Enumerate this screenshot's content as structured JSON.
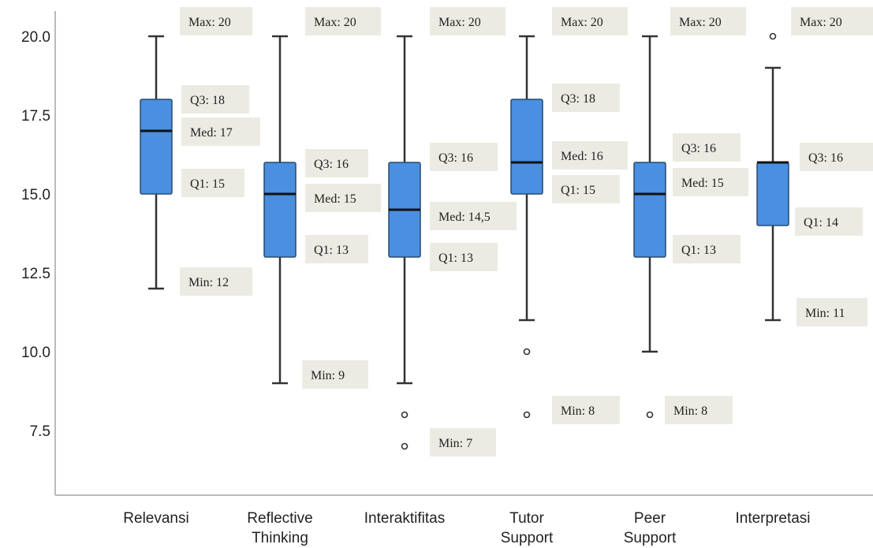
{
  "colors": {
    "box_fill": "#4a8fe0",
    "box_stroke": "#2a4a6e",
    "whisker": "#333333",
    "median": "#111111",
    "axis": "#bbbbbb",
    "label_bg": "#ecebe3"
  },
  "chart_data": {
    "type": "boxplot",
    "title": "",
    "xlabel": "",
    "ylabel": "",
    "ylim": [
      5.8,
      21.5
    ],
    "yticks": [
      "7.5",
      "10.0",
      "12.5",
      "15.0",
      "17.5",
      "20.0"
    ],
    "categories": [
      {
        "label": [
          "Relevansi"
        ],
        "min": 12,
        "q1": 15,
        "median": 17,
        "q3": 18,
        "max": 20,
        "outliers": [],
        "labels": {
          "max": "Max: 20",
          "q3": "Q3: 18",
          "median": "Med: 17",
          "q1": "Q1: 15",
          "min": "Min: 12"
        }
      },
      {
        "label": [
          "Reflective",
          "Thinking"
        ],
        "min": 9,
        "q1": 13,
        "median": 15,
        "q3": 16,
        "max": 20,
        "outliers": [],
        "labels": {
          "max": "Max: 20",
          "q3": "Q3: 16",
          "median": "Med: 15",
          "q1": "Q1: 13",
          "min": "Min: 9"
        }
      },
      {
        "label": [
          "Interaktifitas"
        ],
        "min": 9,
        "q1": 13,
        "median": 14.5,
        "q3": 16,
        "max": 20,
        "outliers": [
          8,
          7
        ],
        "labels": {
          "max": "Max: 20",
          "q3": "Q3: 16",
          "median": "Med: 14,5",
          "q1": "Q1: 13",
          "min": "Min: 7"
        }
      },
      {
        "label": [
          "Tutor",
          "Support"
        ],
        "min": 11,
        "q1": 15,
        "median": 16,
        "q3": 18,
        "max": 20,
        "outliers": [
          10,
          8
        ],
        "labels": {
          "max": "Max: 20",
          "q3": "Q3: 18",
          "median": "Med: 16",
          "q1": "Q1: 15",
          "min": "Min: 8"
        }
      },
      {
        "label": [
          "Peer",
          "Support"
        ],
        "min": 10,
        "q1": 13,
        "median": 15,
        "q3": 16,
        "max": 20,
        "outliers": [
          8
        ],
        "labels": {
          "max": "Max: 20",
          "q3": "Q3: 16",
          "median": "Med: 15",
          "q1": "Q1: 13",
          "min": "Min: 8"
        }
      },
      {
        "label": [
          "Interpretasi"
        ],
        "min": 11,
        "q1": 14,
        "median": 16,
        "q3": 16,
        "max": 19,
        "outliers": [
          20
        ],
        "labels": {
          "max": "Max: 20",
          "q3": "Q3: 16",
          "median": "",
          "q1": "Q1: 14",
          "min": "Min: 11"
        }
      }
    ]
  }
}
